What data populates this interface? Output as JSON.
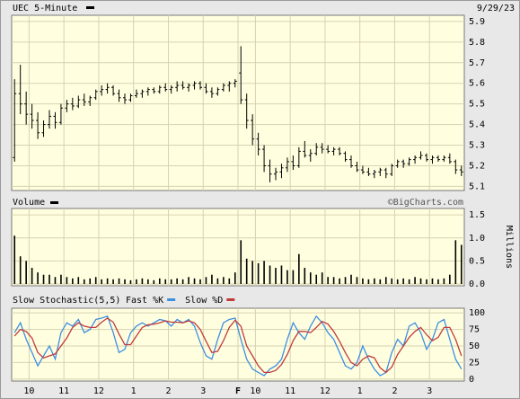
{
  "date": "9/29/23",
  "chart_data": [
    {
      "type": "ohlc",
      "title": "UEC 5-Minute",
      "color": "#000000",
      "grid": true,
      "xlim": [
        0,
        78
      ],
      "ylim": [
        5.08,
        5.93
      ],
      "yticks": [
        5.9,
        5.8,
        5.7,
        5.6,
        5.5,
        5.4,
        5.3,
        5.2,
        5.1
      ],
      "ohlc": [
        [
          5.24,
          5.62,
          5.22,
          5.55
        ],
        [
          5.55,
          5.69,
          5.45,
          5.5
        ],
        [
          5.5,
          5.56,
          5.4,
          5.45
        ],
        [
          5.45,
          5.5,
          5.38,
          5.42
        ],
        [
          5.42,
          5.46,
          5.33,
          5.36
        ],
        [
          5.36,
          5.42,
          5.34,
          5.4
        ],
        [
          5.4,
          5.47,
          5.38,
          5.44
        ],
        [
          5.44,
          5.46,
          5.38,
          5.41
        ],
        [
          5.41,
          5.5,
          5.4,
          5.48
        ],
        [
          5.48,
          5.52,
          5.46,
          5.5
        ],
        [
          5.5,
          5.53,
          5.47,
          5.49
        ],
        [
          5.49,
          5.54,
          5.48,
          5.52
        ],
        [
          5.52,
          5.55,
          5.49,
          5.51
        ],
        [
          5.51,
          5.54,
          5.49,
          5.53
        ],
        [
          5.53,
          5.57,
          5.52,
          5.56
        ],
        [
          5.56,
          5.59,
          5.54,
          5.57
        ],
        [
          5.57,
          5.6,
          5.55,
          5.58
        ],
        [
          5.58,
          5.59,
          5.54,
          5.55
        ],
        [
          5.55,
          5.57,
          5.51,
          5.53
        ],
        [
          5.53,
          5.55,
          5.5,
          5.52
        ],
        [
          5.52,
          5.55,
          5.51,
          5.54
        ],
        [
          5.54,
          5.57,
          5.53,
          5.55
        ],
        [
          5.55,
          5.57,
          5.53,
          5.56
        ],
        [
          5.56,
          5.58,
          5.54,
          5.57
        ],
        [
          5.57,
          5.58,
          5.55,
          5.56
        ],
        [
          5.56,
          5.59,
          5.55,
          5.58
        ],
        [
          5.58,
          5.6,
          5.56,
          5.57
        ],
        [
          5.57,
          5.59,
          5.55,
          5.58
        ],
        [
          5.58,
          5.61,
          5.56,
          5.59
        ],
        [
          5.59,
          5.61,
          5.57,
          5.58
        ],
        [
          5.58,
          5.6,
          5.56,
          5.59
        ],
        [
          5.59,
          5.61,
          5.57,
          5.6
        ],
        [
          5.6,
          5.61,
          5.57,
          5.58
        ],
        [
          5.58,
          5.6,
          5.55,
          5.56
        ],
        [
          5.56,
          5.58,
          5.53,
          5.55
        ],
        [
          5.55,
          5.58,
          5.54,
          5.57
        ],
        [
          5.57,
          5.6,
          5.56,
          5.59
        ],
        [
          5.59,
          5.61,
          5.56,
          5.6
        ],
        [
          5.6,
          5.62,
          5.58,
          5.61
        ],
        [
          5.65,
          5.78,
          5.5,
          5.52
        ],
        [
          5.52,
          5.55,
          5.38,
          5.42
        ],
        [
          5.42,
          5.45,
          5.3,
          5.33
        ],
        [
          5.33,
          5.36,
          5.25,
          5.28
        ],
        [
          5.28,
          5.3,
          5.17,
          5.2
        ],
        [
          5.2,
          5.23,
          5.12,
          5.16
        ],
        [
          5.16,
          5.19,
          5.13,
          5.17
        ],
        [
          5.17,
          5.21,
          5.14,
          5.19
        ],
        [
          5.19,
          5.24,
          5.17,
          5.22
        ],
        [
          5.22,
          5.25,
          5.18,
          5.2
        ],
        [
          5.2,
          5.29,
          5.19,
          5.27
        ],
        [
          5.27,
          5.32,
          5.24,
          5.25
        ],
        [
          5.25,
          5.28,
          5.22,
          5.26
        ],
        [
          5.26,
          5.31,
          5.25,
          5.29
        ],
        [
          5.29,
          5.31,
          5.26,
          5.28
        ],
        [
          5.28,
          5.3,
          5.26,
          5.27
        ],
        [
          5.27,
          5.29,
          5.25,
          5.28
        ],
        [
          5.28,
          5.29,
          5.25,
          5.26
        ],
        [
          5.26,
          5.27,
          5.22,
          5.23
        ],
        [
          5.23,
          5.25,
          5.19,
          5.2
        ],
        [
          5.2,
          5.22,
          5.17,
          5.18
        ],
        [
          5.18,
          5.2,
          5.16,
          5.17
        ],
        [
          5.17,
          5.19,
          5.15,
          5.16
        ],
        [
          5.16,
          5.18,
          5.14,
          5.17
        ],
        [
          5.17,
          5.19,
          5.15,
          5.18
        ],
        [
          5.18,
          5.19,
          5.14,
          5.16
        ],
        [
          5.16,
          5.21,
          5.15,
          5.2
        ],
        [
          5.2,
          5.23,
          5.19,
          5.22
        ],
        [
          5.22,
          5.23,
          5.19,
          5.21
        ],
        [
          5.21,
          5.24,
          5.2,
          5.23
        ],
        [
          5.23,
          5.25,
          5.21,
          5.24
        ],
        [
          5.24,
          5.27,
          5.23,
          5.25
        ],
        [
          5.25,
          5.26,
          5.22,
          5.23
        ],
        [
          5.23,
          5.25,
          5.21,
          5.24
        ],
        [
          5.24,
          5.25,
          5.22,
          5.23
        ],
        [
          5.23,
          5.25,
          5.22,
          5.24
        ],
        [
          5.24,
          5.26,
          5.21,
          5.22
        ],
        [
          5.22,
          5.23,
          5.16,
          5.18
        ],
        [
          5.18,
          5.2,
          5.15,
          5.17
        ]
      ]
    },
    {
      "type": "bar",
      "title": "Volume",
      "watermark": "©BigCharts.com",
      "y_label": "Millions",
      "color": "#000000",
      "grid": true,
      "xlim": [
        0,
        78
      ],
      "ylim": [
        -0.04,
        1.64
      ],
      "yticks": [
        1.5,
        {
          "value": 1,
          "label": "1.0"
        },
        0.5,
        {
          "value": 0,
          "label": "0.0"
        }
      ],
      "values": [
        1.05,
        0.6,
        0.5,
        0.35,
        0.25,
        0.2,
        0.2,
        0.15,
        0.2,
        0.15,
        0.12,
        0.15,
        0.1,
        0.12,
        0.15,
        0.1,
        0.12,
        0.1,
        0.12,
        0.1,
        0.08,
        0.1,
        0.12,
        0.1,
        0.08,
        0.12,
        0.1,
        0.1,
        0.12,
        0.1,
        0.15,
        0.12,
        0.1,
        0.15,
        0.2,
        0.12,
        0.15,
        0.12,
        0.25,
        0.95,
        0.55,
        0.5,
        0.45,
        0.5,
        0.4,
        0.35,
        0.4,
        0.3,
        0.3,
        0.65,
        0.35,
        0.25,
        0.2,
        0.25,
        0.15,
        0.15,
        0.12,
        0.15,
        0.2,
        0.15,
        0.12,
        0.1,
        0.12,
        0.1,
        0.15,
        0.12,
        0.1,
        0.12,
        0.1,
        0.15,
        0.12,
        0.1,
        0.12,
        0.1,
        0.12,
        0.2,
        0.95,
        0.85
      ]
    },
    {
      "type": "line",
      "title": "Slow Stochastic(5,5)",
      "grid": true,
      "xlim": [
        0,
        78
      ],
      "ylim": [
        -3,
        107
      ],
      "yticks": [
        100,
        75,
        50,
        25,
        0
      ],
      "xticks": [
        {
          "value": 3,
          "label": "10"
        },
        {
          "value": 9,
          "label": "11"
        },
        {
          "value": 15,
          "label": "12"
        },
        {
          "value": 21,
          "label": "1"
        },
        {
          "value": 27,
          "label": "2"
        },
        {
          "value": 33,
          "label": "3"
        },
        {
          "value": 39,
          "label": "F"
        },
        {
          "value": 42,
          "label": "10"
        },
        {
          "value": 48,
          "label": "11"
        },
        {
          "value": 54,
          "label": "12"
        },
        {
          "value": 60,
          "label": "1"
        },
        {
          "value": 66,
          "label": "2"
        },
        {
          "value": 72,
          "label": "3"
        }
      ],
      "series": [
        {
          "name": "Fast %K",
          "color": "#3d8fe0",
          "values": [
            70,
            85,
            60,
            40,
            20,
            35,
            50,
            30,
            70,
            85,
            80,
            90,
            70,
            75,
            90,
            92,
            95,
            70,
            40,
            45,
            70,
            80,
            85,
            80,
            85,
            90,
            88,
            80,
            90,
            85,
            90,
            80,
            55,
            35,
            30,
            60,
            85,
            90,
            92,
            60,
            30,
            15,
            10,
            5,
            15,
            20,
            30,
            60,
            85,
            70,
            60,
            80,
            95,
            85,
            70,
            60,
            40,
            20,
            15,
            25,
            50,
            30,
            15,
            5,
            10,
            40,
            60,
            50,
            80,
            85,
            70,
            45,
            60,
            85,
            90,
            60,
            30,
            15
          ]
        },
        {
          "name": "Slow %D",
          "color": "#c23a3a",
          "values": [
            65,
            75,
            72,
            62,
            40,
            32,
            35,
            38,
            50,
            62,
            78,
            85,
            80,
            78,
            78,
            86,
            92,
            86,
            68,
            52,
            52,
            65,
            78,
            82,
            83,
            85,
            88,
            86,
            86,
            85,
            88,
            85,
            75,
            57,
            40,
            42,
            58,
            78,
            89,
            80,
            50,
            35,
            20,
            10,
            10,
            13,
            22,
            37,
            58,
            72,
            72,
            70,
            78,
            87,
            83,
            72,
            57,
            40,
            25,
            20,
            30,
            35,
            32,
            17,
            10,
            18,
            37,
            50,
            63,
            72,
            78,
            67,
            58,
            63,
            78,
            78,
            60,
            35
          ]
        }
      ]
    }
  ]
}
